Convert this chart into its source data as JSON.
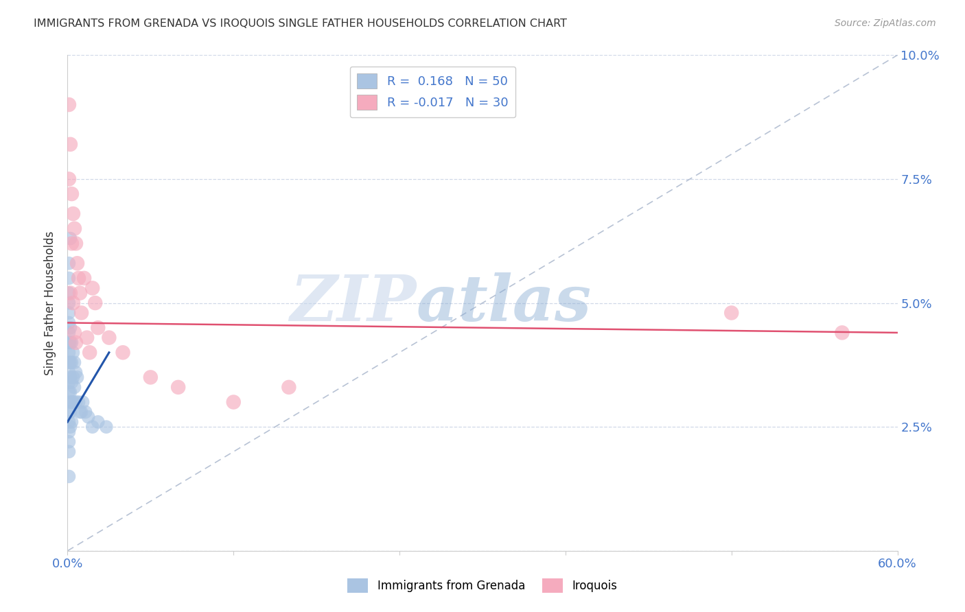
{
  "title": "IMMIGRANTS FROM GRENADA VS IROQUOIS SINGLE FATHER HOUSEHOLDS CORRELATION CHART",
  "source": "Source: ZipAtlas.com",
  "ylabel": "Single Father Households",
  "xlim": [
    0.0,
    0.6
  ],
  "ylim": [
    0.0,
    0.1
  ],
  "blue_R": 0.168,
  "blue_N": 50,
  "pink_R": -0.017,
  "pink_N": 30,
  "blue_color": "#aac4e2",
  "pink_color": "#f5abbe",
  "blue_line_color": "#2255aa",
  "pink_line_color": "#e05070",
  "dashed_line_color": "#b0bcd0",
  "watermark_zip": "ZIP",
  "watermark_atlas": "atlas",
  "blue_x": [
    0.002,
    0.001,
    0.001,
    0.001,
    0.001,
    0.001,
    0.001,
    0.001,
    0.001,
    0.001,
    0.001,
    0.001,
    0.001,
    0.001,
    0.001,
    0.001,
    0.001,
    0.001,
    0.001,
    0.001,
    0.002,
    0.002,
    0.002,
    0.002,
    0.002,
    0.002,
    0.002,
    0.003,
    0.003,
    0.003,
    0.003,
    0.003,
    0.004,
    0.004,
    0.004,
    0.005,
    0.005,
    0.006,
    0.006,
    0.007,
    0.008,
    0.009,
    0.01,
    0.011,
    0.013,
    0.015,
    0.018,
    0.022,
    0.028,
    0.001
  ],
  "blue_y": [
    0.063,
    0.058,
    0.055,
    0.052,
    0.05,
    0.048,
    0.046,
    0.044,
    0.042,
    0.04,
    0.038,
    0.036,
    0.034,
    0.032,
    0.03,
    0.028,
    0.026,
    0.024,
    0.022,
    0.02,
    0.045,
    0.042,
    0.038,
    0.035,
    0.032,
    0.028,
    0.025,
    0.042,
    0.038,
    0.034,
    0.03,
    0.026,
    0.04,
    0.035,
    0.03,
    0.038,
    0.033,
    0.036,
    0.03,
    0.035,
    0.03,
    0.028,
    0.028,
    0.03,
    0.028,
    0.027,
    0.025,
    0.026,
    0.025,
    0.015
  ],
  "pink_x": [
    0.001,
    0.001,
    0.002,
    0.002,
    0.003,
    0.003,
    0.004,
    0.004,
    0.005,
    0.005,
    0.006,
    0.006,
    0.007,
    0.008,
    0.009,
    0.01,
    0.012,
    0.014,
    0.016,
    0.018,
    0.02,
    0.022,
    0.03,
    0.04,
    0.06,
    0.08,
    0.12,
    0.16,
    0.48,
    0.56
  ],
  "pink_y": [
    0.09,
    0.075,
    0.082,
    0.052,
    0.072,
    0.062,
    0.068,
    0.05,
    0.065,
    0.044,
    0.062,
    0.042,
    0.058,
    0.055,
    0.052,
    0.048,
    0.055,
    0.043,
    0.04,
    0.053,
    0.05,
    0.045,
    0.043,
    0.04,
    0.035,
    0.033,
    0.03,
    0.033,
    0.048,
    0.044
  ],
  "blue_line_x": [
    0.0,
    0.03
  ],
  "blue_line_y": [
    0.026,
    0.04
  ],
  "pink_line_x": [
    0.0,
    0.6
  ],
  "pink_line_y": [
    0.046,
    0.044
  ]
}
